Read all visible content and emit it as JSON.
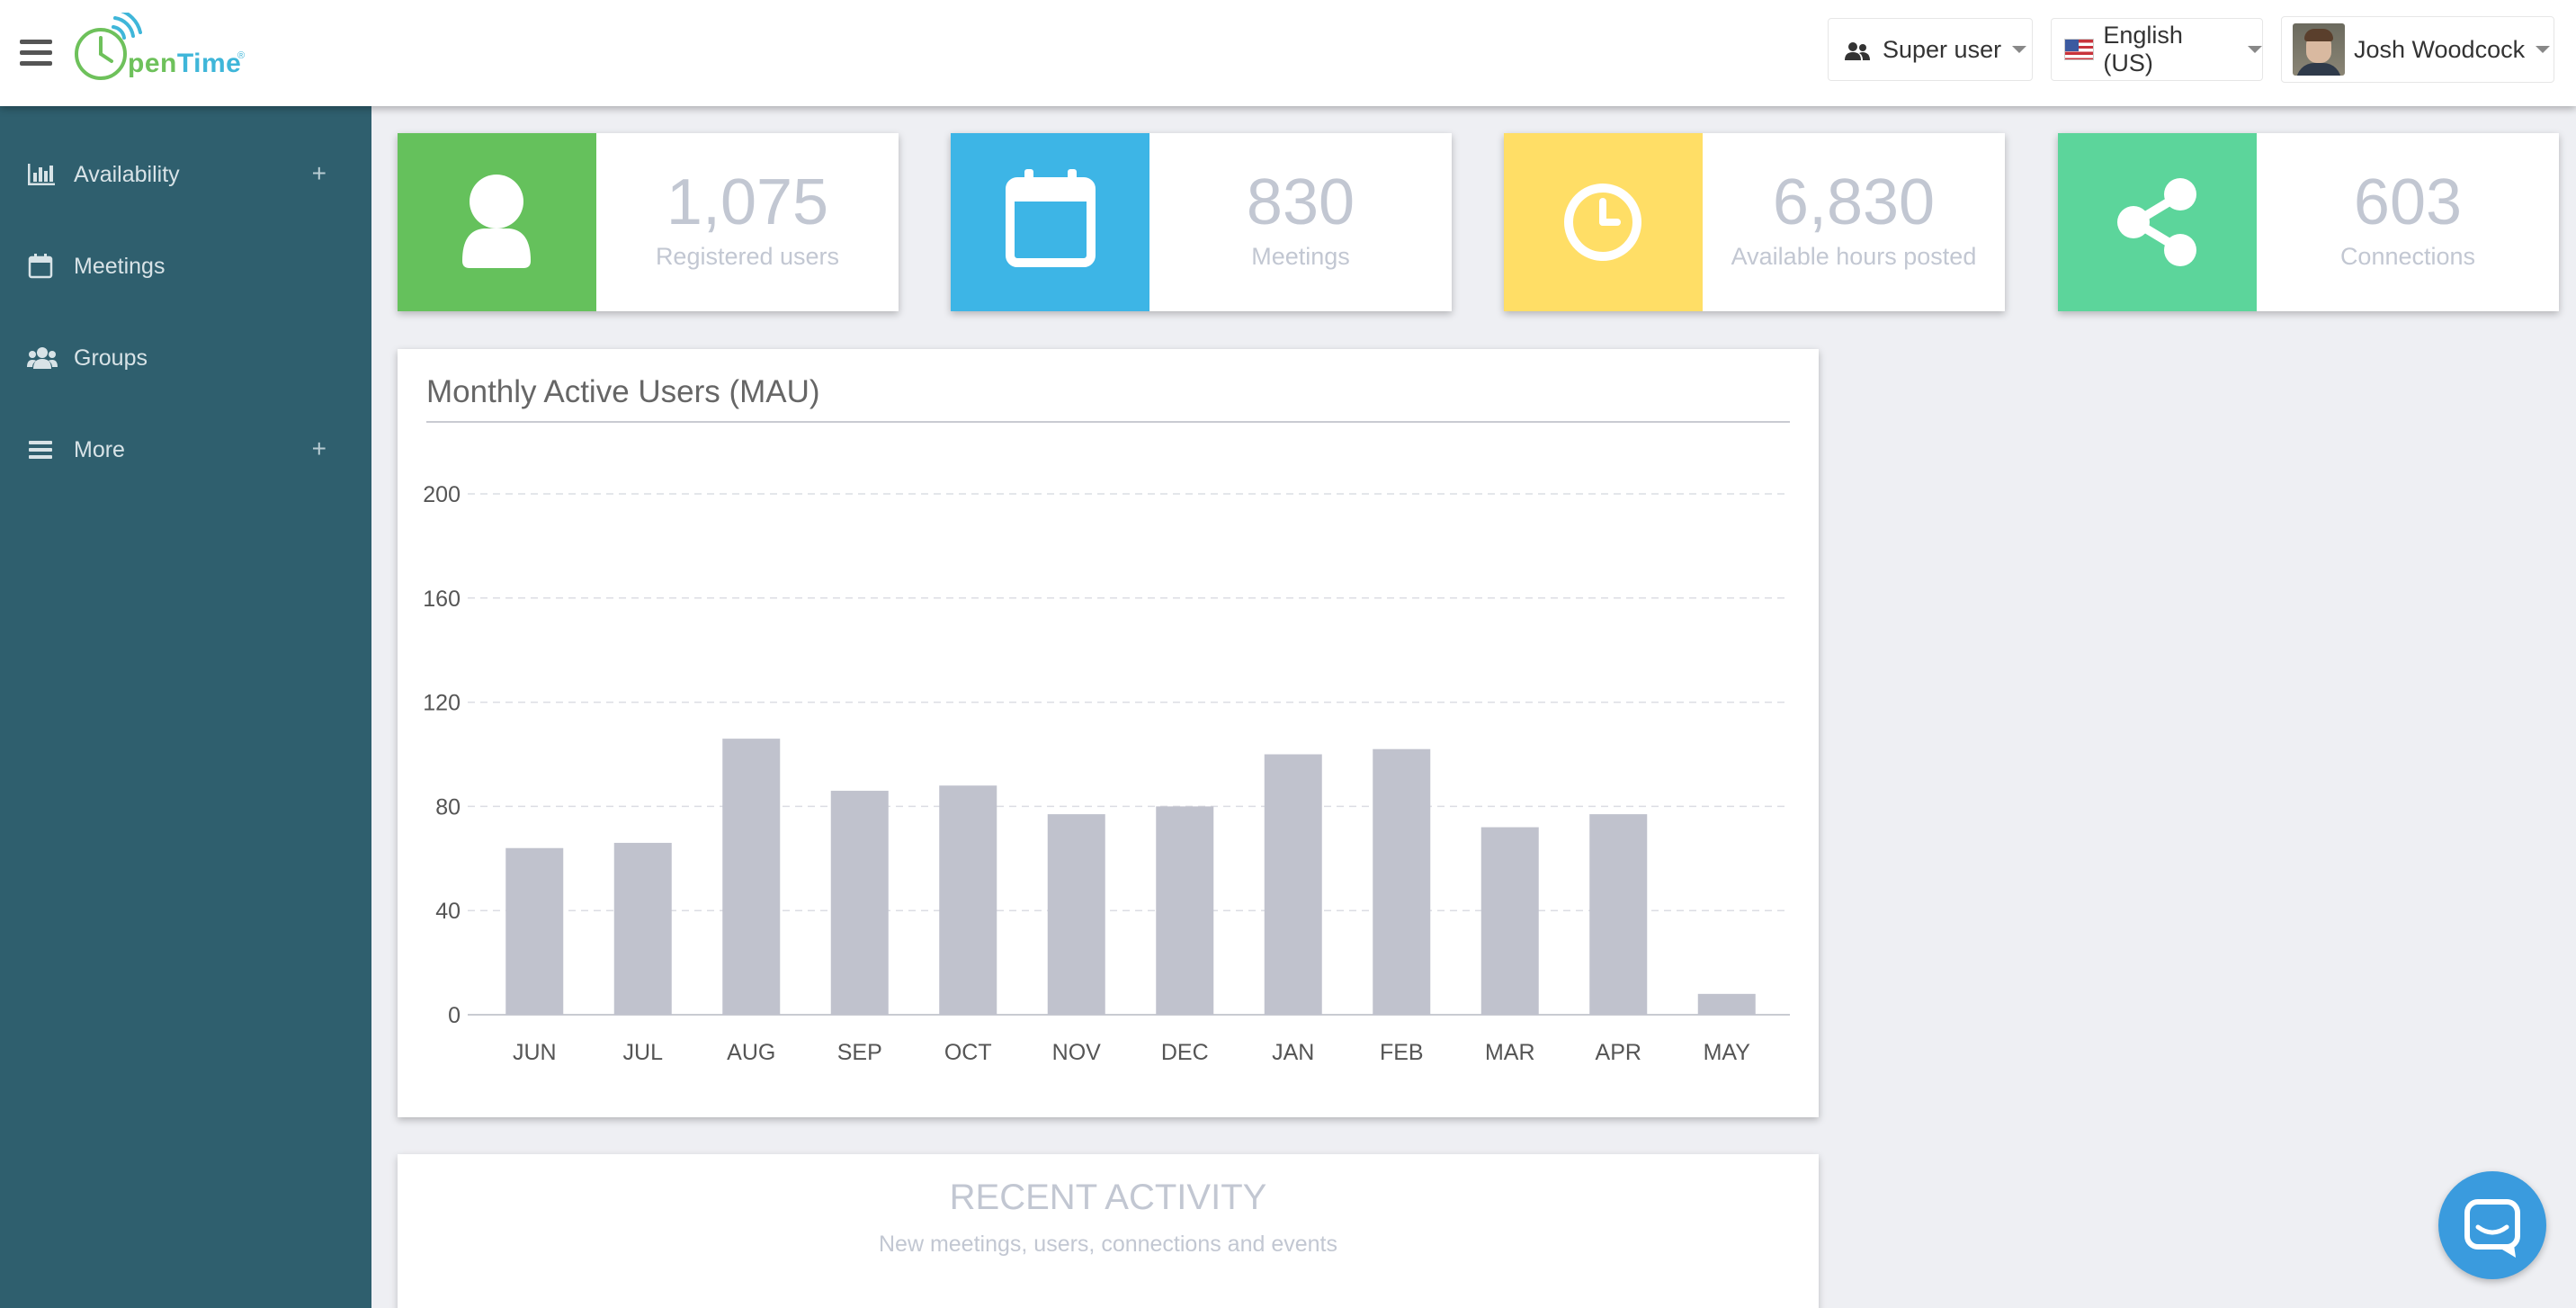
{
  "header": {
    "logo_word_1": "pen",
    "logo_word_2": "Time",
    "logo_mark": "®",
    "role_label": "Super user",
    "language_label": "English (US)",
    "user_name": "Josh Woodcock"
  },
  "sidebar": {
    "items": [
      {
        "label": "Availability",
        "icon": "bar-chart-icon",
        "expandable": true
      },
      {
        "label": "Meetings",
        "icon": "calendar-icon",
        "expandable": false
      },
      {
        "label": "Groups",
        "icon": "users-icon",
        "expandable": false
      },
      {
        "label": "More",
        "icon": "list-icon",
        "expandable": true
      }
    ],
    "plus_glyph": "+"
  },
  "stats": [
    {
      "value": "1,075",
      "label": "Registered users",
      "color": "#65c15c",
      "icon": "user-icon"
    },
    {
      "value": "830",
      "label": "Meetings",
      "color": "#3db5e6",
      "icon": "calendar-icon"
    },
    {
      "value": "6,830",
      "label": "Available hours posted",
      "color": "#ffde66",
      "icon": "clock-icon"
    },
    {
      "value": "603",
      "label": "Connections",
      "color": "#5cd59b",
      "icon": "share-icon"
    }
  ],
  "mau_panel": {
    "title": "Monthly Active Users (MAU)"
  },
  "chart_data": {
    "type": "bar",
    "title": "Monthly Active Users (MAU)",
    "categories": [
      "JUN",
      "JUL",
      "AUG",
      "SEP",
      "OCT",
      "NOV",
      "DEC",
      "JAN",
      "FEB",
      "MAR",
      "APR",
      "MAY"
    ],
    "values": [
      64,
      66,
      106,
      86,
      88,
      77,
      80,
      100,
      102,
      72,
      77,
      8
    ],
    "yticks": [
      0,
      40,
      80,
      120,
      160,
      200
    ],
    "ylim": [
      0,
      200
    ],
    "xlabel": "",
    "ylabel": "",
    "grid": true,
    "bar_color": "#c0c2cd"
  },
  "recent_activity": {
    "title": "RECENT ACTIVITY",
    "subtitle": "New meetings, users, connections and events"
  },
  "chat": {
    "icon": "chat-icon"
  }
}
